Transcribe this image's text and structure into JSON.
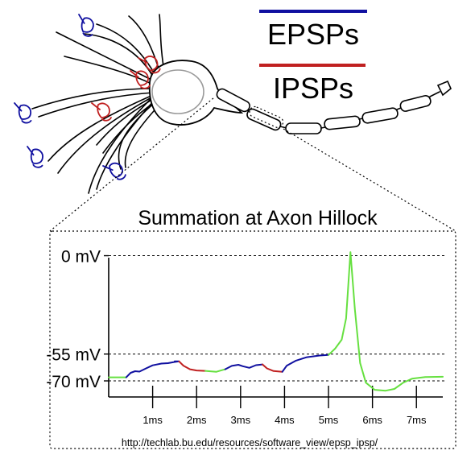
{
  "legend": {
    "epsp_label": "EPSPs",
    "ipsp_label": "IPSPs",
    "epsp_color": "#1010a0",
    "ipsp_color": "#c02020"
  },
  "graph": {
    "title": "Summation at Axon Hillock",
    "source_url": "http://techlab.bu.edu/resources/software_view/epsp_ipsp/",
    "summed_color": "#66e040"
  },
  "chart_data": {
    "type": "line",
    "title": "Summation at Axon Hillock",
    "xlabel": "",
    "ylabel": "",
    "y_ticks": [
      {
        "value": 0,
        "label": "0 mV"
      },
      {
        "value": -55,
        "label": "-55 mV"
      },
      {
        "value": -70,
        "label": "-70 mV"
      }
    ],
    "x_ticks": [
      {
        "value": 1,
        "label": "1ms"
      },
      {
        "value": 2,
        "label": "2ms"
      },
      {
        "value": 3,
        "label": "3ms"
      },
      {
        "value": 4,
        "label": "4ms"
      },
      {
        "value": 5,
        "label": "5ms"
      },
      {
        "value": 6,
        "label": "6ms"
      },
      {
        "value": 7,
        "label": "7ms"
      }
    ],
    "xlim": [
      0,
      7.6
    ],
    "ylim": [
      -79,
      7
    ],
    "grid": "dashed lines at 0, -55 and -70 mV",
    "segments": [
      {
        "kind": "summed",
        "points": [
          [
            0,
            -68
          ],
          [
            0.4,
            -68
          ]
        ]
      },
      {
        "kind": "epsp",
        "points": [
          [
            0.4,
            -68
          ],
          [
            0.5,
            -65.5
          ],
          [
            0.6,
            -64.6
          ],
          [
            0.7,
            -64.8
          ],
          [
            0.85,
            -63
          ],
          [
            1.0,
            -61.3
          ],
          [
            1.2,
            -60.3
          ],
          [
            1.35,
            -60.1
          ],
          [
            1.5,
            -59.4
          ],
          [
            1.6,
            -59.1
          ],
          [
            1.55,
            -59.1
          ],
          [
            1.5,
            -59.1
          ],
          [
            1.6,
            -59.1
          ],
          [
            1.6,
            -59.1
          ]
        ]
      },
      {
        "kind": "ipsp",
        "points": [
          [
            1.6,
            -59.1
          ],
          [
            1.7,
            -61.5
          ],
          [
            1.85,
            -63.5
          ],
          [
            2.0,
            -64.2
          ],
          [
            2.2,
            -64.4
          ]
        ]
      },
      {
        "kind": "summed",
        "points": [
          [
            2.2,
            -64.4
          ],
          [
            2.45,
            -64.9
          ],
          [
            2.65,
            -63.5
          ]
        ]
      },
      {
        "kind": "epsp",
        "points": [
          [
            2.65,
            -63.5
          ],
          [
            2.8,
            -61.6
          ],
          [
            2.95,
            -61.0
          ],
          [
            3.05,
            -61.8
          ],
          [
            3.2,
            -62.7
          ],
          [
            3.35,
            -61.2
          ],
          [
            3.5,
            -60.8
          ]
        ]
      },
      {
        "kind": "ipsp",
        "points": [
          [
            3.5,
            -60.8
          ],
          [
            3.6,
            -63.0
          ],
          [
            3.75,
            -64.5
          ],
          [
            3.95,
            -64.9
          ]
        ]
      },
      {
        "kind": "epsp",
        "points": [
          [
            3.95,
            -64.9
          ],
          [
            4.05,
            -61.5
          ],
          [
            4.25,
            -58.8
          ],
          [
            4.5,
            -56.8
          ],
          [
            4.8,
            -55.8
          ],
          [
            5.0,
            -55.5
          ]
        ]
      },
      {
        "kind": "summed",
        "points": [
          [
            5.0,
            -55.5
          ],
          [
            5.15,
            -52
          ],
          [
            5.3,
            -47
          ],
          [
            5.4,
            -35
          ],
          [
            5.5,
            2
          ],
          [
            5.6,
            -30
          ],
          [
            5.72,
            -60
          ],
          [
            5.85,
            -71
          ],
          [
            6.05,
            -75
          ],
          [
            6.3,
            -75.5
          ],
          [
            6.5,
            -74.5
          ],
          [
            6.7,
            -71
          ],
          [
            6.9,
            -68.8
          ],
          [
            7.2,
            -67.9
          ],
          [
            7.6,
            -67.7
          ]
        ]
      }
    ]
  }
}
